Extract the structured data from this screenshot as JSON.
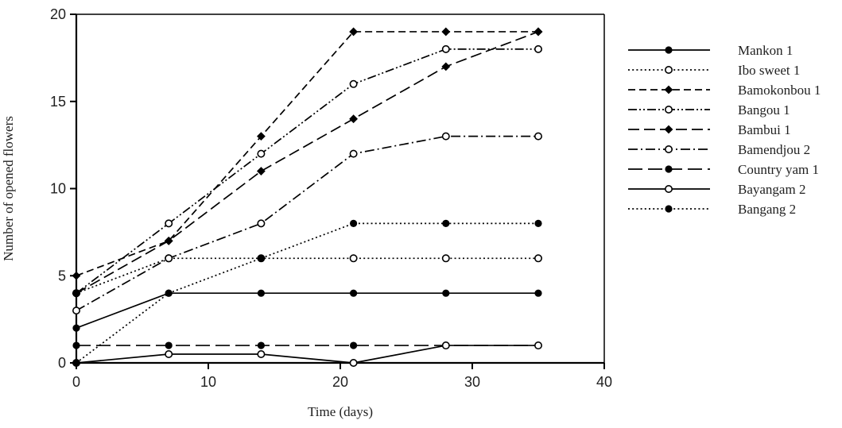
{
  "page": {
    "background_color": "#ffffff",
    "line_color": "#000000",
    "text_color": "#1f1f1f"
  },
  "chart_data": {
    "type": "line",
    "title": "",
    "xlabel": "Time (days)",
    "ylabel": "Number of opened flowers",
    "x": [
      0,
      7,
      14,
      21,
      28,
      35
    ],
    "xlim": [
      0,
      40
    ],
    "ylim": [
      0,
      20
    ],
    "xticks": [
      0,
      10,
      20,
      30,
      40
    ],
    "yticks": [
      0,
      5,
      10,
      15,
      20
    ],
    "grid": false,
    "legend_position": "right-outside",
    "series": [
      {
        "name": "Mankon 1",
        "values": [
          2,
          4,
          4,
          4,
          4,
          4
        ],
        "line": "solid",
        "marker": "filled-circle"
      },
      {
        "name": "Ibo sweet 1",
        "values": [
          4,
          6,
          6,
          6,
          6,
          6
        ],
        "line": "dotted",
        "marker": "open-circle"
      },
      {
        "name": "Bamokonbou 1",
        "values": [
          5,
          7,
          13,
          19,
          19,
          19
        ],
        "line": "dashed",
        "marker": "filled-diamond"
      },
      {
        "name": "Bangou 1",
        "values": [
          4,
          8,
          12,
          16,
          18,
          18
        ],
        "line": "dash-dot-dot",
        "marker": "open-circle"
      },
      {
        "name": "Bambui 1",
        "values": [
          4,
          7,
          11,
          14,
          17,
          19
        ],
        "line": "long-dash",
        "marker": "filled-diamond"
      },
      {
        "name": "Bamendjou 2",
        "values": [
          3,
          6,
          8,
          12,
          13,
          13
        ],
        "line": "dash-dot",
        "marker": "open-circle"
      },
      {
        "name": "Country yam 1",
        "values": [
          1,
          1,
          1,
          1,
          1,
          1
        ],
        "line": "long-dash-wide",
        "marker": "filled-circle"
      },
      {
        "name": "Bayangam 2",
        "values": [
          0,
          0.5,
          0.5,
          0,
          1,
          1
        ],
        "line": "solid",
        "marker": "open-circle"
      },
      {
        "name": "Bangang 2",
        "values": [
          0,
          4,
          6,
          8,
          8,
          8
        ],
        "line": "dotted",
        "marker": "filled-circle"
      }
    ]
  }
}
